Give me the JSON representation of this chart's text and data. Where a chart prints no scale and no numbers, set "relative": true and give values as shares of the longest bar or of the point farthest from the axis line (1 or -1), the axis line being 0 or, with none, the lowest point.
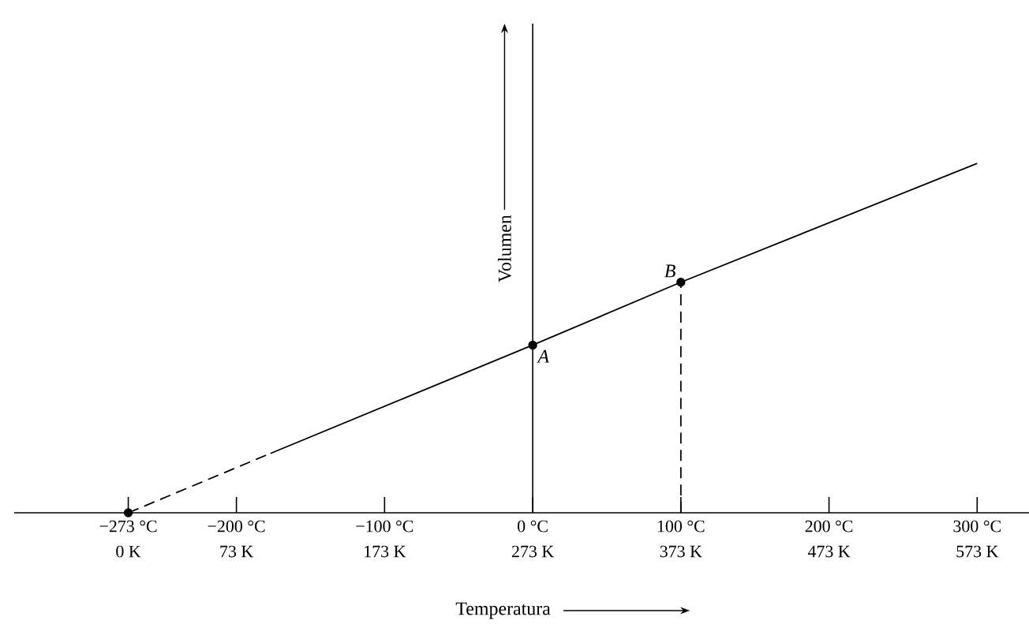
{
  "chart_data": {
    "type": "line",
    "relative": true,
    "xlabel": "Temperatura",
    "ylabel": "Volumen",
    "xlim": [
      -350,
      335
    ],
    "xticks": [
      {
        "value": -273,
        "label": "−273 °C"
      },
      {
        "value": -200,
        "label": "−200 °C"
      },
      {
        "value": -100,
        "label": "−100 °C"
      },
      {
        "value": 0,
        "label": "0 °C"
      },
      {
        "value": 100,
        "label": "100 °C"
      },
      {
        "value": 200,
        "label": "200 °C"
      },
      {
        "value": 300,
        "label": "300 °C"
      }
    ],
    "x2lim": [
      -77,
      608
    ],
    "x2ticks": [
      {
        "value": 0,
        "label": "0 K"
      },
      {
        "value": 73,
        "label": "73 K"
      },
      {
        "value": 173,
        "label": "173 K"
      },
      {
        "value": 273,
        "label": "273 K"
      },
      {
        "value": 373,
        "label": "373 K"
      },
      {
        "value": 473,
        "label": "473 K"
      },
      {
        "value": 573,
        "label": "573 K"
      }
    ],
    "series": [
      {
        "type": "line",
        "color": "#000000",
        "line_style": "dashed",
        "x": [
          -273,
          -177
        ],
        "values": [
          0,
          0.17
        ]
      },
      {
        "type": "line",
        "color": "#000000",
        "line_style": "solid",
        "x": [
          -177,
          0,
          100,
          300
        ],
        "values": [
          0.17,
          0.48,
          0.66,
          1
        ]
      },
      {
        "type": "line",
        "color": "#000000",
        "line_style": "dashed",
        "x": [
          100,
          100
        ],
        "values": [
          0,
          0.66
        ]
      },
      {
        "type": "scatter",
        "color": "#000000",
        "marker": "circle",
        "x": [
          -273,
          0,
          100
        ],
        "values": [
          0,
          0.48,
          0.66
        ]
      }
    ],
    "annotations": [
      {
        "text": "A",
        "x": 0,
        "y": 0.48
      },
      {
        "text": "B",
        "x": 100,
        "y": 0.66
      }
    ]
  }
}
